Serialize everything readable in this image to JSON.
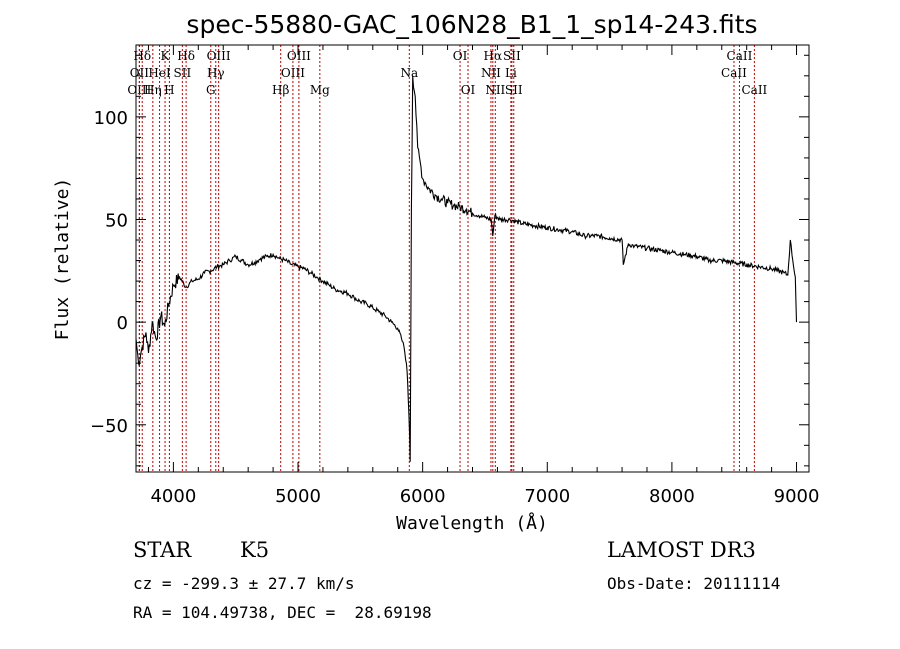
{
  "chart_data": {
    "type": "line",
    "title": "spec-55880-GAC_106N28_B1_1_sp14-243.fits",
    "xlabel": "Wavelength (Å)",
    "ylabel": "Flux (relative)",
    "xlim": [
      3700,
      9100
    ],
    "ylim": [
      -73,
      135
    ],
    "xticks": [
      4000,
      5000,
      6000,
      7000,
      8000,
      9000
    ],
    "yticks": [
      -50,
      0,
      50,
      100
    ],
    "series": [
      {
        "name": "spectrum",
        "x": [
          3700,
          3720,
          3750,
          3780,
          3800,
          3830,
          3860,
          3900,
          3930,
          3960,
          4000,
          4050,
          4100,
          4150,
          4200,
          4250,
          4300,
          4350,
          4400,
          4450,
          4500,
          4550,
          4600,
          4650,
          4700,
          4750,
          4800,
          4850,
          4900,
          4950,
          5000,
          5050,
          5100,
          5150,
          5200,
          5250,
          5300,
          5350,
          5400,
          5450,
          5500,
          5550,
          5600,
          5650,
          5700,
          5750,
          5800,
          5830,
          5850,
          5870,
          5880,
          5890,
          5895,
          5900,
          5910,
          5920,
          5940,
          5960,
          5980,
          6000,
          6020,
          6050,
          6100,
          6150,
          6200,
          6250,
          6300,
          6350,
          6400,
          6450,
          6500,
          6550,
          6563,
          6580,
          6620,
          6700,
          6800,
          6900,
          7000,
          7100,
          7200,
          7300,
          7400,
          7500,
          7600,
          7610,
          7650,
          7700,
          7800,
          7900,
          8000,
          8100,
          8200,
          8300,
          8400,
          8500,
          8600,
          8700,
          8800,
          8850,
          8900,
          8930,
          8950,
          8970,
          8990,
          9000
        ],
        "y": [
          -8,
          -20,
          -12,
          -5,
          -15,
          0,
          -8,
          3,
          -2,
          8,
          18,
          22,
          17,
          20,
          21,
          24,
          25,
          27,
          28,
          30,
          32,
          30,
          28,
          29,
          31,
          32,
          33,
          31,
          30,
          28,
          27,
          26,
          24,
          22,
          20,
          18,
          16,
          15,
          14,
          12,
          10,
          9,
          7,
          5,
          3,
          0,
          -3,
          -8,
          -12,
          -20,
          -30,
          -45,
          -55,
          -68,
          55,
          120,
          110,
          85,
          78,
          70,
          68,
          65,
          62,
          60,
          58,
          57,
          56,
          55,
          53,
          52,
          51,
          50,
          42,
          52,
          50,
          50,
          48,
          47,
          46,
          45,
          44,
          42,
          42,
          41,
          40,
          28,
          38,
          37,
          36,
          35,
          34,
          33,
          32,
          30,
          30,
          29,
          28,
          27,
          26,
          25,
          24,
          23,
          40,
          30,
          22,
          0
        ]
      }
    ],
    "lines": [
      {
        "label": "OIII",
        "x": 3727,
        "row": 2
      },
      {
        "label": "Hδ",
        "x": 3750,
        "row": 0
      },
      {
        "label": "OII",
        "x": 3727,
        "row": 1
      },
      {
        "label": "Hη",
        "x": 3835,
        "row": 2
      },
      {
        "label": "HeI",
        "x": 3889,
        "row": 1
      },
      {
        "label": "K",
        "x": 3933,
        "row": 0
      },
      {
        "label": "H",
        "x": 3968,
        "row": 2
      },
      {
        "label": "SII",
        "x": 4072,
        "row": 1
      },
      {
        "label": "Hδ",
        "x": 4102,
        "row": 0
      },
      {
        "label": "G",
        "x": 4300,
        "row": 2
      },
      {
        "label": "Hγ",
        "x": 4340,
        "row": 1
      },
      {
        "label": "OIII",
        "x": 4363,
        "row": 0
      },
      {
        "label": "Hβ",
        "x": 4861,
        "row": 2
      },
      {
        "label": "OIII",
        "x": 4959,
        "row": 1
      },
      {
        "label": "OIII",
        "x": 5007,
        "row": 0
      },
      {
        "label": "Mg",
        "x": 5175,
        "row": 2
      },
      {
        "label": "Na",
        "x": 5893,
        "row": 1
      },
      {
        "label": "OI",
        "x": 6300,
        "row": 0
      },
      {
        "label": "OI",
        "x": 6364,
        "row": 2
      },
      {
        "label": "NII",
        "x": 6548,
        "row": 1
      },
      {
        "label": "Hα",
        "x": 6563,
        "row": 0
      },
      {
        "label": "NII",
        "x": 6583,
        "row": 2
      },
      {
        "label": "Li",
        "x": 6708,
        "row": 1
      },
      {
        "label": "SII",
        "x": 6716,
        "row": 0
      },
      {
        "label": "SII",
        "x": 6731,
        "row": 2
      },
      {
        "label": "CaII",
        "x": 8498,
        "row": 1
      },
      {
        "label": "CaII",
        "x": 8542,
        "row": 0
      },
      {
        "label": "CaII",
        "x": 8662,
        "row": 2
      }
    ]
  },
  "info": {
    "object_class": "STAR",
    "subclass": "K5",
    "survey": "LAMOST DR3",
    "redshift": "cz = -299.3 ± 27.7 km/s",
    "obs_date": "Obs-Date: 20111114",
    "coords": "RA = 104.49738, DEC =  28.69198"
  }
}
